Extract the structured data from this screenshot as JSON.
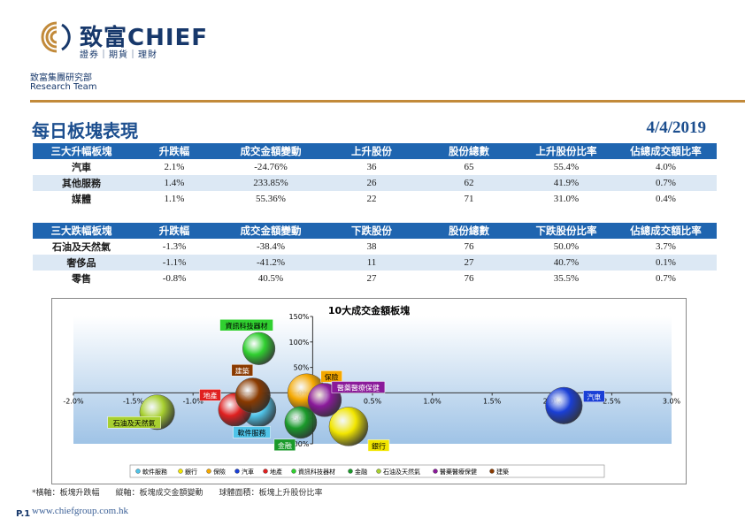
{
  "brand": {
    "name": "致富CHIEF",
    "tagline": "證券｜期貨｜理財",
    "dept_cn": "致富集團研究部",
    "dept_en": "Research Team"
  },
  "page": {
    "title": "每日板塊表現",
    "date": "4/4/2019",
    "footnote": "*橫軸：板塊升跌幅　　縱軸：板塊成交金額變動　　球體面積：板塊上升股份比率",
    "url": "www.chiefgroup.com.hk",
    "page_no": "P.1"
  },
  "rise_table": {
    "headers": [
      "三大升幅板塊",
      "升跌幅",
      "成交金額變動",
      "上升股份",
      "股份總數",
      "上升股份比率",
      "佔總成交額比率"
    ],
    "rows": [
      [
        "汽車",
        "2.1%",
        "-24.76%",
        "36",
        "65",
        "55.4%",
        "4.0%"
      ],
      [
        "其他服務",
        "1.4%",
        "233.85%",
        "26",
        "62",
        "41.9%",
        "0.7%"
      ],
      [
        "媒體",
        "1.1%",
        "55.36%",
        "22",
        "71",
        "31.0%",
        "0.4%"
      ]
    ]
  },
  "fall_table": {
    "headers": [
      "三大跌幅板塊",
      "升跌幅",
      "成交金額變動",
      "下跌股份",
      "股份總數",
      "下跌股份比率",
      "佔總成交額比率"
    ],
    "rows": [
      [
        "石油及天然氣",
        "-1.3%",
        "-38.4%",
        "38",
        "76",
        "50.0%",
        "3.7%"
      ],
      [
        "奢侈品",
        "-1.1%",
        "-41.2%",
        "11",
        "27",
        "40.7%",
        "0.1%"
      ],
      [
        "零售",
        "-0.8%",
        "40.5%",
        "27",
        "76",
        "35.5%",
        "0.7%"
      ]
    ]
  },
  "chart_data": {
    "type": "bubble",
    "title": "10大成交金額板塊",
    "xlabel": "",
    "ylabel": "",
    "x_ticks": [
      "-2.0%",
      "-1.5%",
      "-1.0%",
      "-0.5%",
      "0.0%",
      "0.5%",
      "1.0%",
      "1.5%",
      "2.0%",
      "2.5%",
      "3.0%"
    ],
    "y_ticks": [
      "150%",
      "100%",
      "50%",
      "0%",
      "-50%",
      "-100%"
    ],
    "xlim": [
      -2.0,
      3.0
    ],
    "ylim": [
      -100,
      150
    ],
    "grid": false,
    "legend_position": "bottom",
    "series": [
      {
        "name": "軟件服務",
        "x": -0.45,
        "y": -33,
        "size": 0.48,
        "color": "#4fc3e8"
      },
      {
        "name": "銀行",
        "x": 0.3,
        "y": -66,
        "size": 0.62,
        "color": "#f2e600"
      },
      {
        "name": "保險",
        "x": -0.05,
        "y": 0,
        "size": 0.6,
        "color": "#f5a800"
      },
      {
        "name": "汽車",
        "x": 2.1,
        "y": -25,
        "size": 0.554,
        "color": "#1a3fd6"
      },
      {
        "name": "地產",
        "x": -0.65,
        "y": -33,
        "size": 0.45,
        "color": "#e02020"
      },
      {
        "name": "資訊科技器材",
        "x": -0.45,
        "y": 87,
        "size": 0.43,
        "color": "#30d030"
      },
      {
        "name": "金融",
        "x": -0.1,
        "y": -58,
        "size": 0.42,
        "color": "#1a9a2a"
      },
      {
        "name": "石油及天然氣",
        "x": -1.3,
        "y": -38,
        "size": 0.5,
        "color": "#a8d030"
      },
      {
        "name": "醫藥醫療保健",
        "x": 0.1,
        "y": -14,
        "size": 0.46,
        "color": "#8a1a9a"
      },
      {
        "name": "建築",
        "x": -0.5,
        "y": -5,
        "size": 0.5,
        "color": "#8a3a00"
      }
    ]
  }
}
